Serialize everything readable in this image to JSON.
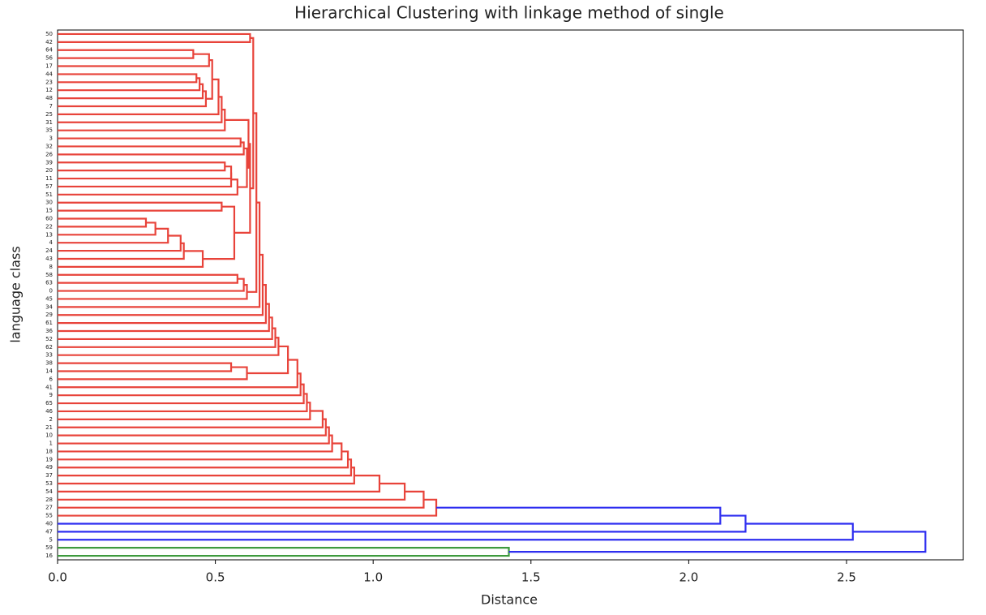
{
  "chart_data": {
    "type": "dendrogram",
    "title": "Hierarchical Clustering with linkage method of single",
    "xlabel": "Distance",
    "ylabel": "language class",
    "leaves": [
      "50",
      "42",
      "64",
      "56",
      "17",
      "44",
      "23",
      "12",
      "48",
      "7",
      "25",
      "31",
      "35",
      "3",
      "32",
      "26",
      "39",
      "20",
      "11",
      "57",
      "51",
      "30",
      "15",
      "60",
      "22",
      "13",
      "4",
      "24",
      "43",
      "8",
      "58",
      "63",
      "0",
      "45",
      "34",
      "29",
      "61",
      "36",
      "52",
      "62",
      "33",
      "38",
      "14",
      "6",
      "41",
      "9",
      "65",
      "46",
      "2",
      "21",
      "10",
      "1",
      "18",
      "19",
      "49",
      "37",
      "53",
      "54",
      "28",
      "27",
      "55",
      "40",
      "47",
      "5",
      "59",
      "16"
    ],
    "merges": [
      [
        2,
        3,
        0.43
      ],
      [
        5,
        6,
        0.44
      ],
      [
        67,
        7,
        0.45
      ],
      [
        68,
        8,
        0.46
      ],
      [
        69,
        9,
        0.47
      ],
      [
        66,
        4,
        0.48
      ],
      [
        71,
        70,
        0.49
      ],
      [
        72,
        10,
        0.51
      ],
      [
        73,
        11,
        0.52
      ],
      [
        74,
        12,
        0.53
      ],
      [
        16,
        17,
        0.53
      ],
      [
        76,
        18,
        0.55
      ],
      [
        77,
        19,
        0.55
      ],
      [
        78,
        20,
        0.57
      ],
      [
        13,
        14,
        0.58
      ],
      [
        80,
        15,
        0.59
      ],
      [
        81,
        79,
        0.6
      ],
      [
        75,
        82,
        0.605
      ],
      [
        23,
        24,
        0.28
      ],
      [
        84,
        25,
        0.31
      ],
      [
        85,
        26,
        0.35
      ],
      [
        86,
        27,
        0.39
      ],
      [
        87,
        28,
        0.4
      ],
      [
        88,
        29,
        0.46
      ],
      [
        21,
        22,
        0.52
      ],
      [
        90,
        89,
        0.56
      ],
      [
        30,
        31,
        0.57
      ],
      [
        92,
        32,
        0.59
      ],
      [
        93,
        33,
        0.6
      ],
      [
        83,
        91,
        0.61
      ],
      [
        0,
        1,
        0.61
      ],
      [
        96,
        95,
        0.62
      ],
      [
        97,
        94,
        0.63
      ],
      [
        98,
        34,
        0.64
      ],
      [
        99,
        35,
        0.65
      ],
      [
        100,
        36,
        0.66
      ],
      [
        101,
        37,
        0.67
      ],
      [
        102,
        38,
        0.68
      ],
      [
        103,
        39,
        0.69
      ],
      [
        104,
        40,
        0.7
      ],
      [
        41,
        42,
        0.55
      ],
      [
        106,
        43,
        0.6
      ],
      [
        105,
        107,
        0.73
      ],
      [
        108,
        44,
        0.76
      ],
      [
        109,
        45,
        0.77
      ],
      [
        110,
        46,
        0.78
      ],
      [
        111,
        47,
        0.79
      ],
      [
        112,
        48,
        0.8
      ],
      [
        113,
        49,
        0.84
      ],
      [
        114,
        50,
        0.85
      ],
      [
        115,
        51,
        0.86
      ],
      [
        116,
        52,
        0.87
      ],
      [
        117,
        53,
        0.9
      ],
      [
        118,
        54,
        0.92
      ],
      [
        119,
        55,
        0.93
      ],
      [
        120,
        56,
        0.94
      ],
      [
        121,
        57,
        1.02
      ],
      [
        122,
        58,
        1.1
      ],
      [
        123,
        59,
        1.16
      ],
      [
        124,
        60,
        1.2
      ],
      [
        125,
        61,
        2.1
      ],
      [
        126,
        62,
        2.18
      ],
      [
        127,
        63,
        2.52
      ],
      [
        64,
        65,
        1.43
      ],
      [
        128,
        129,
        2.75
      ]
    ],
    "color_threshold": 1.925,
    "cluster_colors": [
      "#e8433a",
      "#3d9a3d"
    ],
    "above_threshold_color": "#2e2ef0",
    "xlim": [
      0,
      2.87
    ],
    "xticks": [
      {
        "value": 0,
        "label": "0.0"
      },
      0.5,
      {
        "value": 1,
        "label": "1.0"
      },
      1.5,
      {
        "value": 2,
        "label": "2.0"
      },
      2.5
    ]
  }
}
